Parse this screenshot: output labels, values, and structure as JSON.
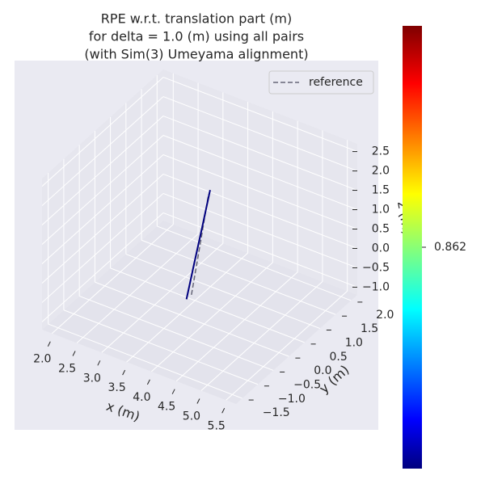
{
  "chart_data": {
    "type": "line3d",
    "title": [
      "RPE w.r.t. translation part (m)",
      "for delta = 1.0 (m) using all pairs",
      "(with Sim(3) Umeyama alignment)"
    ],
    "xlabel": "x (m)",
    "ylabel": "y (m)",
    "zlabel": "z (m)",
    "xlim": [
      1.8,
      5.7
    ],
    "ylim": [
      -1.7,
      2.2
    ],
    "zlim": [
      -1.2,
      2.7
    ],
    "xticks": [
      {
        "value": 2,
        "label": "2.0"
      },
      2.5,
      {
        "value": 3,
        "label": "3.0"
      },
      3.5,
      {
        "value": 4,
        "label": "4.0"
      },
      4.5,
      {
        "value": 5,
        "label": "5.0"
      },
      5.5
    ],
    "yticks": [
      {
        "value": -1.5,
        "label": "−1.5"
      },
      {
        "value": -1,
        "label": "−1.0"
      },
      {
        "value": -0.5,
        "label": "−0.5"
      },
      {
        "value": 0,
        "label": "0.0"
      },
      0.5,
      {
        "value": 1,
        "label": "1.0"
      },
      1.5,
      {
        "value": 2,
        "label": "2.0"
      }
    ],
    "zticks": [
      {
        "value": -1,
        "label": "−1.0"
      },
      {
        "value": -0.5,
        "label": "−0.5"
      },
      {
        "value": 0,
        "label": "0.0"
      },
      0.5,
      {
        "value": 1,
        "label": "1.0"
      },
      1.5,
      {
        "value": 2,
        "label": "2.0"
      },
      2.5
    ],
    "grid": true,
    "legend": "upper right",
    "series": [
      {
        "name": "reference",
        "color": "#666677",
        "linestyle": "dashed",
        "x": [
          3.36,
          3.36,
          3.36
        ],
        "y": [
          0.61,
          0.89,
          1.16
        ],
        "z": [
          -1.2,
          -0.1,
          1.0
        ]
      },
      {
        "color": "#00007f",
        "x": [
          3.36,
          3.36,
          3.36,
          3.36
        ],
        "y": [
          0.45,
          0.7,
          0.96,
          1.21
        ],
        "z": [
          -1.2,
          -0.45,
          0.31,
          1.07
        ]
      }
    ],
    "colorbar": {
      "cmap": "jet",
      "ticks": [
        0.862
      ]
    }
  }
}
